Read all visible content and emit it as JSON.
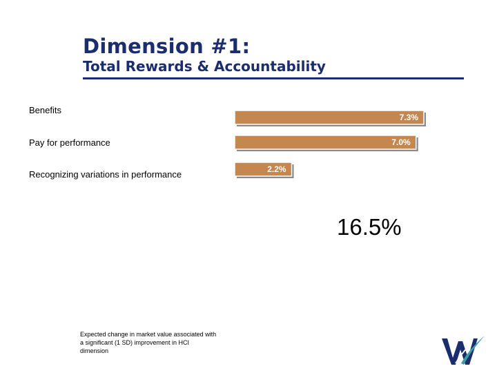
{
  "header": {
    "title": "Dimension #1:",
    "subtitle": "Total Rewards & Accountability"
  },
  "chart_data": {
    "type": "bar",
    "orientation": "horizontal",
    "categories": [
      "Benefits",
      "Pay for performance",
      "Recognizing variations in performance"
    ],
    "values": [
      7.3,
      7.0,
      2.2
    ],
    "value_labels": [
      "7.3%",
      "7.0%",
      "2.2%"
    ],
    "unit": "%",
    "xlim": [
      0,
      7.3
    ],
    "grid": false,
    "bar_color": "#c4874f",
    "bar_shadow_color": "#8a8a8a"
  },
  "total": "16.5%",
  "note": "Expected change in market value associated with a significant (1 SD) improvement in HCI dimension",
  "logo": {
    "icon": "watson-wyatt-w-logo",
    "primary_color": "#1c2d6e",
    "accent_color": "#3aa0a6"
  }
}
